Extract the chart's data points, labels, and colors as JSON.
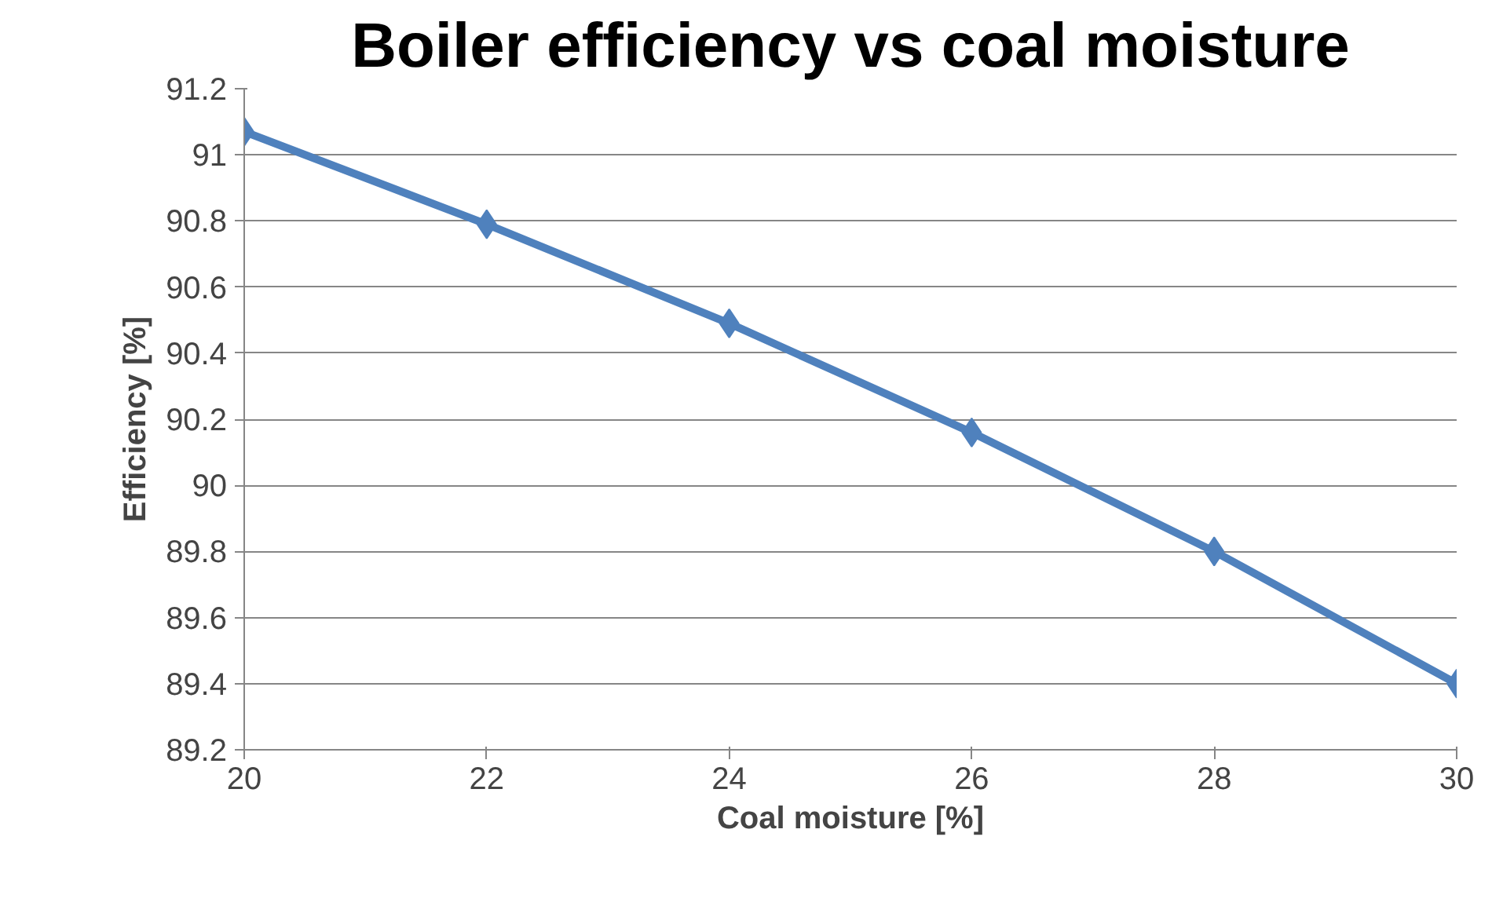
{
  "chart_data": {
    "type": "line",
    "title": "Boiler efficiency vs coal moisture",
    "xlabel": "Coal moisture [%]",
    "ylabel": "Efficiency [%]",
    "x": [
      20,
      22,
      24,
      26,
      28,
      30
    ],
    "series": [
      {
        "color": "#4f81bd",
        "values": [
          91.07,
          90.79,
          90.49,
          90.16,
          89.8,
          89.4
        ]
      }
    ],
    "xlim": [
      20,
      30
    ],
    "xticks": [
      20,
      22,
      24,
      26,
      28,
      30
    ],
    "ylim": [
      89.2,
      91.2
    ],
    "yticks": [
      89.2,
      89.4,
      89.6,
      89.8,
      90,
      90.2,
      90.4,
      90.6,
      90.8,
      91,
      91.2
    ],
    "grid": "y",
    "marker": "diamond",
    "line_style": "solid"
  }
}
